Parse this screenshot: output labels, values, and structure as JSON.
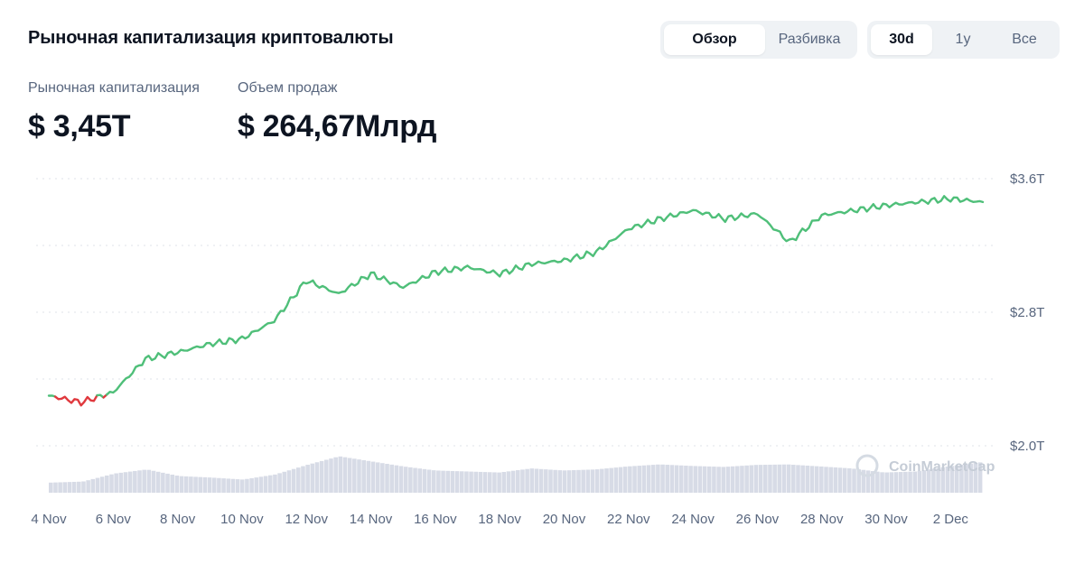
{
  "header": {
    "title": "Рыночная капитализация криптовалюты",
    "view_tabs": [
      {
        "label": "Обзор",
        "active": true
      },
      {
        "label": "Разбивка",
        "active": false
      }
    ],
    "range_tabs": [
      {
        "label": "30d",
        "active": true
      },
      {
        "label": "1y",
        "active": false
      },
      {
        "label": "Все",
        "active": false
      }
    ]
  },
  "stats": {
    "market_cap_label": "Рыночная капитализация",
    "market_cap_value": "$ 3,45T",
    "volume_label": "Объем продаж",
    "volume_value": "$ 264,67Млрд"
  },
  "watermark": "CoinMarketCap",
  "colors": {
    "up": "#4fbf79",
    "down": "#e0393e",
    "volume": "#d7dbe6",
    "grid": "#dfe3ea",
    "axis_text": "#58667e"
  },
  "chart_data": {
    "type": "line",
    "x": [
      "4 Nov",
      "5 Nov",
      "6 Nov",
      "7 Nov",
      "8 Nov",
      "9 Nov",
      "10 Nov",
      "11 Nov",
      "12 Nov",
      "13 Nov",
      "14 Nov",
      "15 Nov",
      "16 Nov",
      "17 Nov",
      "18 Nov",
      "19 Nov",
      "20 Nov",
      "21 Nov",
      "22 Nov",
      "23 Nov",
      "24 Nov",
      "25 Nov",
      "26 Nov",
      "27 Nov",
      "28 Nov",
      "29 Nov",
      "30 Nov",
      "1 Dec",
      "2 Dec",
      "3 Dec"
    ],
    "x_tick_labels": [
      "4 Nov",
      "6 Nov",
      "8 Nov",
      "10 Nov",
      "12 Nov",
      "14 Nov",
      "16 Nov",
      "18 Nov",
      "20 Nov",
      "22 Nov",
      "24 Nov",
      "26 Nov",
      "28 Nov",
      "30 Nov",
      "2 Dec"
    ],
    "series": [
      {
        "values": [
          2.3,
          2.26,
          2.32,
          2.52,
          2.56,
          2.61,
          2.64,
          2.75,
          2.99,
          2.91,
          3.03,
          2.95,
          3.04,
          3.07,
          3.03,
          3.09,
          3.11,
          3.16,
          3.3,
          3.36,
          3.41,
          3.36,
          3.39,
          3.22,
          3.38,
          3.41,
          3.44,
          3.46,
          3.48,
          3.46
        ]
      }
    ],
    "volume_values": [
      0.2,
      0.22,
      0.38,
      0.46,
      0.33,
      0.3,
      0.26,
      0.36,
      0.55,
      0.72,
      0.62,
      0.52,
      0.44,
      0.42,
      0.4,
      0.48,
      0.44,
      0.46,
      0.52,
      0.56,
      0.53,
      0.51,
      0.55,
      0.56,
      0.52,
      0.48,
      0.4,
      0.42,
      0.52,
      0.6
    ],
    "y_tick_labels": [
      "$3.6T",
      "$2.8T",
      "$2.0T"
    ],
    "ylim": [
      2.0,
      3.6
    ],
    "grid": true,
    "axis_side": "right"
  }
}
